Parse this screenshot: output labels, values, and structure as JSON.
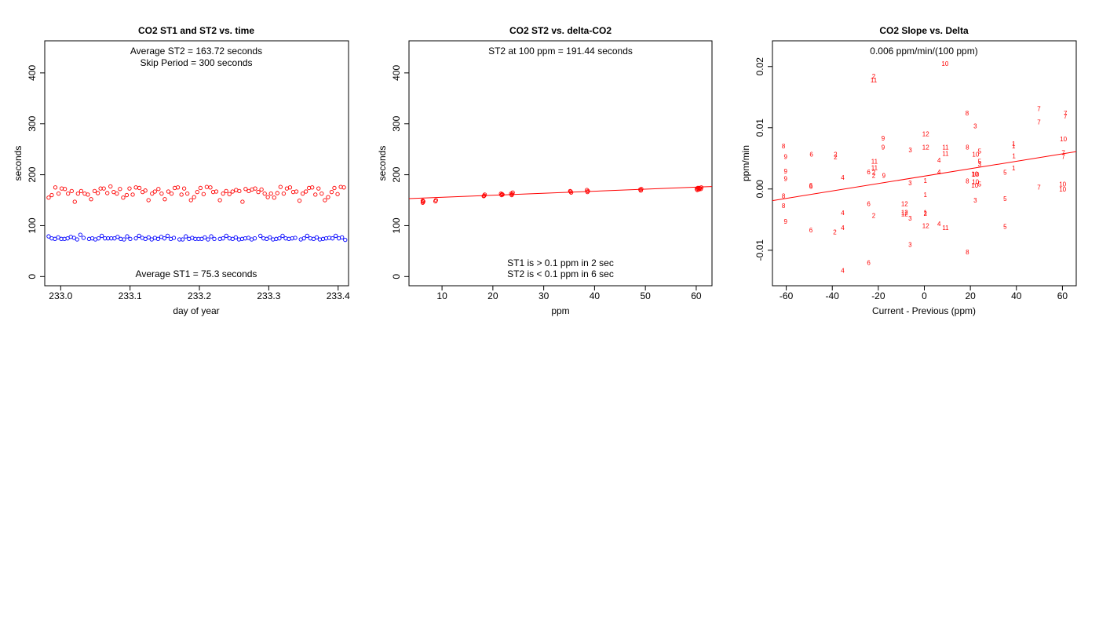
{
  "colors": {
    "st1": "#0000ff",
    "st2": "#ff0000",
    "fit": "#ff0000",
    "axis": "#000000"
  },
  "chart_data": [
    {
      "type": "scatter",
      "title": "CO2 ST1 and ST2 vs. time",
      "xlabel": "day of year",
      "ylabel": "seconds",
      "xlim": [
        232.977,
        233.415
      ],
      "ylim": [
        -18,
        463
      ],
      "xticks": [
        233.0,
        233.1,
        233.2,
        233.3,
        233.4
      ],
      "xtick_labels": [
        "233.0",
        "233.1",
        "233.2",
        "233.3",
        "233.4"
      ],
      "yticks": [
        0,
        100,
        200,
        300,
        400
      ],
      "ytick_labels": [
        "0",
        "100",
        "200",
        "300",
        "400"
      ],
      "annotations": [
        "Average ST2 =  163.72  seconds",
        "Skip Period =  300  seconds",
        "Average ST1 =  75.3  seconds"
      ],
      "series": [
        {
          "key": "ST2",
          "x": [
            232.9826,
            232.9871,
            232.9923,
            232.9969,
            233.0014,
            233.006,
            233.0106,
            233.0158,
            233.0203,
            233.0249,
            233.0295,
            233.0346,
            233.0392,
            233.0438,
            233.0489,
            233.0535,
            233.0575,
            233.0621,
            233.0672,
            233.0718,
            233.0764,
            233.081,
            233.0855,
            233.0901,
            233.0952,
            233.0992,
            233.1038,
            233.1084,
            233.1135,
            233.1181,
            233.122,
            233.1266,
            233.1318,
            233.1358,
            233.1409,
            233.1455,
            233.1501,
            233.1552,
            233.1598,
            233.1644,
            233.1689,
            233.1741,
            233.178,
            233.1826,
            233.1878,
            233.1923,
            233.1969,
            233.2015,
            233.206,
            233.2106,
            233.2158,
            233.2198,
            233.2243,
            233.2295,
            233.2341,
            233.2386,
            233.2432,
            233.2478,
            233.2529,
            233.2575,
            233.2621,
            233.2666,
            233.2712,
            233.2758,
            233.2804,
            233.2849,
            233.2895,
            233.2941,
            233.2986,
            233.3032,
            233.3078,
            233.3123,
            233.3169,
            233.3215,
            233.3261,
            233.3306,
            233.3352,
            233.3398,
            233.3443,
            233.3489,
            233.3535,
            233.358,
            233.3626,
            233.3672,
            233.3717,
            233.3763,
            233.3809,
            233.3855,
            233.3906,
            233.3946,
            233.3992,
            233.4038,
            233.4083
          ],
          "y": [
            155,
            160,
            175,
            163,
            173,
            172,
            163,
            168,
            147,
            163,
            168,
            163,
            161,
            152,
            168,
            164,
            173,
            173,
            164,
            177,
            166,
            163,
            172,
            155,
            160,
            173,
            161,
            175,
            174,
            166,
            169,
            150,
            163,
            167,
            172,
            163,
            152,
            167,
            163,
            174,
            175,
            161,
            173,
            163,
            150,
            156,
            166,
            174,
            162,
            176,
            175,
            166,
            167,
            150,
            163,
            168,
            162,
            167,
            170,
            168,
            147,
            172,
            168,
            171,
            173,
            166,
            171,
            163,
            156,
            163,
            155,
            164,
            176,
            163,
            173,
            175,
            166,
            167,
            149,
            163,
            167,
            174,
            175,
            161,
            173,
            163,
            150,
            156,
            166,
            174,
            162,
            176,
            175
          ]
        },
        {
          "key": "ST1",
          "x": [
            232.9826,
            232.9871,
            232.9917,
            232.9963,
            233.0009,
            233.0054,
            233.01,
            233.0146,
            233.0192,
            233.0237,
            233.0283,
            233.0329,
            233.0409,
            233.0455,
            233.05,
            233.0546,
            233.0592,
            233.0638,
            233.0683,
            233.0729,
            233.0775,
            233.0821,
            233.0866,
            233.0912,
            233.0958,
            233.1003,
            233.1084,
            233.113,
            233.1175,
            233.1221,
            233.1267,
            233.1312,
            233.1358,
            233.1404,
            233.145,
            233.1495,
            233.1541,
            233.1587,
            233.1632,
            233.1713,
            233.1758,
            233.1804,
            233.185,
            233.1895,
            233.1941,
            233.1987,
            233.2033,
            233.2078,
            233.2124,
            233.217,
            233.2215,
            233.2296,
            233.2341,
            233.2387,
            233.2433,
            233.2478,
            233.2524,
            233.257,
            233.2615,
            233.2661,
            233.2707,
            233.2753,
            233.2798,
            233.2879,
            233.2924,
            233.297,
            233.3016,
            233.3061,
            233.3107,
            233.3153,
            233.3199,
            233.3244,
            233.329,
            233.3336,
            233.3381,
            233.3462,
            233.3507,
            233.3553,
            233.3599,
            233.3645,
            233.369,
            233.3736,
            233.3782,
            233.3827,
            233.3873,
            233.3919,
            233.3965,
            233.401,
            233.4056,
            233.4102
          ],
          "y": [
            79,
            75,
            74,
            77,
            74,
            74,
            75,
            78,
            76,
            73,
            82,
            76,
            74,
            75,
            73,
            75,
            80,
            75,
            75,
            75,
            75,
            78,
            74,
            73,
            79,
            74,
            75,
            80,
            76,
            74,
            77,
            73,
            76,
            74,
            78,
            75,
            80,
            74,
            76,
            73,
            73,
            79,
            74,
            76,
            74,
            74,
            74,
            77,
            73,
            79,
            74,
            74,
            75,
            80,
            75,
            74,
            77,
            73,
            74,
            75,
            76,
            73,
            75,
            80,
            75,
            74,
            77,
            73,
            74,
            75,
            80,
            75,
            74,
            75,
            76,
            73,
            75,
            80,
            75,
            74,
            77,
            73,
            74,
            75,
            76,
            75,
            80,
            75,
            77,
            72
          ]
        }
      ]
    },
    {
      "type": "scatter",
      "title": "CO2 ST2 vs. delta-CO2",
      "xlabel": "ppm",
      "ylabel": "seconds",
      "xlim": [
        3.5,
        63.1
      ],
      "ylim": [
        -18,
        463
      ],
      "xticks": [
        10,
        20,
        30,
        40,
        50,
        60
      ],
      "xtick_labels": [
        "10",
        "20",
        "30",
        "40",
        "50",
        "60"
      ],
      "yticks": [
        0,
        100,
        200,
        300,
        400
      ],
      "ytick_labels": [
        "0",
        "100",
        "200",
        "300",
        "400"
      ],
      "annotations": [
        "ST2 at 100 ppm =  191.44  seconds",
        "ST1 is > 0.1 ppm in 2 sec",
        "ST2 is < 0.1 ppm in 6 sec"
      ],
      "fit_line": {
        "x": [
          3.5,
          63.1
        ],
        "y": [
          153.1,
          176.9
        ]
      },
      "series": [
        {
          "key": "ST2",
          "x": [
            6.2,
            6.3,
            6.3,
            6.2,
            8.7,
            8.8,
            18.3,
            18.4,
            18.2,
            21.7,
            21.8,
            21.6,
            21.9,
            23.7,
            23.8,
            23.6,
            23.9,
            35.3,
            35.4,
            35.2,
            38.6,
            38.7,
            38.5,
            49.1,
            49.2,
            49.0,
            60.1,
            60.3,
            60.5,
            60.7,
            60.9,
            61.0,
            60.2,
            60.6,
            60.4
          ],
          "y": [
            145,
            147,
            148,
            149,
            148,
            150,
            159,
            161,
            158,
            160,
            162,
            163,
            161,
            160,
            162,
            163,
            165,
            167,
            165,
            168,
            166,
            168,
            170,
            169,
            172,
            171,
            172,
            174,
            171,
            173,
            172,
            175,
            170,
            174,
            173
          ]
        }
      ]
    },
    {
      "type": "scatter",
      "title": "CO2 Slope vs. Delta",
      "xlabel": "Current - Previous (ppm)",
      "ylabel": "ppm/min",
      "xlim": [
        -66,
        66
      ],
      "ylim": [
        -0.0158,
        0.0242
      ],
      "xticks": [
        -60,
        -40,
        -20,
        0,
        20,
        40,
        60
      ],
      "xtick_labels": [
        "-60",
        "-40",
        "-20",
        "0",
        "20",
        "40",
        "60"
      ],
      "yticks": [
        -0.01,
        0.0,
        0.01,
        0.02
      ],
      "ytick_labels": [
        "-0.01",
        "0.00",
        "0.01",
        "0.02"
      ],
      "annotations": [
        "0.006  ppm/min/(100 ppm)",
        "10"
      ],
      "fit_line": {
        "x": [
          -66,
          66
        ],
        "y": [
          -0.0019,
          0.0061
        ]
      },
      "point_labels": [
        {
          "x": 9.0,
          "y": 0.0205,
          "t": "10"
        },
        {
          "x": -22,
          "y": 0.0184,
          "t": "2"
        },
        {
          "x": -22,
          "y": 0.0178,
          "t": "11"
        },
        {
          "x": 18.6,
          "y": 0.0124,
          "t": "8"
        },
        {
          "x": 22.1,
          "y": 0.0103,
          "t": "3"
        },
        {
          "x": 49.8,
          "y": 0.0131,
          "t": "7"
        },
        {
          "x": 61.3,
          "y": 0.0124,
          "t": "7"
        },
        {
          "x": 61.3,
          "y": 0.0119,
          "t": "7"
        },
        {
          "x": 49.8,
          "y": 0.0109,
          "t": "7"
        },
        {
          "x": 0.6,
          "y": 0.009,
          "t": "12"
        },
        {
          "x": 60.4,
          "y": 0.0082,
          "t": "10"
        },
        {
          "x": -17.9,
          "y": 0.0083,
          "t": "9"
        },
        {
          "x": -17.9,
          "y": 0.0068,
          "t": "9"
        },
        {
          "x": -61.2,
          "y": 0.007,
          "t": "8"
        },
        {
          "x": 38.8,
          "y": 0.0074,
          "t": "1"
        },
        {
          "x": 38.8,
          "y": 0.007,
          "t": "1"
        },
        {
          "x": 9.2,
          "y": 0.0068,
          "t": "11"
        },
        {
          "x": 0.6,
          "y": 0.0068,
          "t": "12"
        },
        {
          "x": 18.7,
          "y": 0.0068,
          "t": "8"
        },
        {
          "x": -6.1,
          "y": 0.0064,
          "t": "3"
        },
        {
          "x": 24.0,
          "y": 0.0062,
          "t": "5"
        },
        {
          "x": 9.2,
          "y": 0.0058,
          "t": "11"
        },
        {
          "x": -49.1,
          "y": 0.0057,
          "t": "6"
        },
        {
          "x": -38.6,
          "y": 0.0057,
          "t": "2"
        },
        {
          "x": -38.6,
          "y": 0.0052,
          "t": "2"
        },
        {
          "x": 22.3,
          "y": 0.0057,
          "t": "10"
        },
        {
          "x": -60.3,
          "y": 0.0053,
          "t": "9"
        },
        {
          "x": 38.9,
          "y": 0.0054,
          "t": "1"
        },
        {
          "x": 6.4,
          "y": 0.0047,
          "t": "4"
        },
        {
          "x": 24.0,
          "y": 0.0045,
          "t": "5"
        },
        {
          "x": 24.0,
          "y": 0.0041,
          "t": "3"
        },
        {
          "x": -21.7,
          "y": 0.0045,
          "t": "11"
        },
        {
          "x": 60.4,
          "y": 0.0059,
          "t": "7"
        },
        {
          "x": 60.4,
          "y": 0.0053,
          "t": "7"
        },
        {
          "x": 38.8,
          "y": 0.0034,
          "t": "1"
        },
        {
          "x": -21.7,
          "y": 0.0035,
          "t": "11"
        },
        {
          "x": -24.2,
          "y": 0.0028,
          "t": "6"
        },
        {
          "x": -22.0,
          "y": 0.0027,
          "t": "2"
        },
        {
          "x": -22.0,
          "y": 0.0022,
          "t": "2"
        },
        {
          "x": -60.3,
          "y": 0.0029,
          "t": "9"
        },
        {
          "x": 6.4,
          "y": 0.0028,
          "t": "4"
        },
        {
          "x": 35.1,
          "y": 0.0027,
          "t": "5"
        },
        {
          "x": 21.9,
          "y": 0.0025,
          "t": "10"
        },
        {
          "x": 22.3,
          "y": 0.0024,
          "t": "10"
        },
        {
          "x": -17.6,
          "y": 0.0022,
          "t": "9"
        },
        {
          "x": -35.5,
          "y": 0.0019,
          "t": "4"
        },
        {
          "x": -60.3,
          "y": 0.0017,
          "t": "9"
        },
        {
          "x": 0.4,
          "y": 0.0014,
          "t": "1"
        },
        {
          "x": 18.7,
          "y": 0.0013,
          "t": "8"
        },
        {
          "x": 22.2,
          "y": 0.0012,
          "t": "10"
        },
        {
          "x": -6.2,
          "y": 0.001,
          "t": "3"
        },
        {
          "x": 21.9,
          "y": 0.0006,
          "t": "10"
        },
        {
          "x": 24.0,
          "y": 0.0008,
          "t": "5"
        },
        {
          "x": -49.3,
          "y": 0.0006,
          "t": "6"
        },
        {
          "x": -49.3,
          "y": 0.0004,
          "t": "6"
        },
        {
          "x": 49.8,
          "y": 0.0003,
          "t": "7"
        },
        {
          "x": 60.1,
          "y": 0.0008,
          "t": "10"
        },
        {
          "x": 60.1,
          "y": 0.0,
          "t": "10"
        },
        {
          "x": -61.2,
          "y": -0.0011,
          "t": "8"
        },
        {
          "x": 0.4,
          "y": -0.0009,
          "t": "1"
        },
        {
          "x": 35.1,
          "y": -0.0016,
          "t": "5"
        },
        {
          "x": 22.1,
          "y": -0.0018,
          "t": "3"
        },
        {
          "x": -24.2,
          "y": -0.0024,
          "t": "6"
        },
        {
          "x": -8.6,
          "y": -0.0024,
          "t": "12"
        },
        {
          "x": -61.2,
          "y": -0.0027,
          "t": "8"
        },
        {
          "x": -8.6,
          "y": -0.0038,
          "t": "12"
        },
        {
          "x": -8.6,
          "y": -0.0041,
          "t": "12"
        },
        {
          "x": 0.4,
          "y": -0.0038,
          "t": "1"
        },
        {
          "x": 0.4,
          "y": -0.004,
          "t": "2"
        },
        {
          "x": -35.5,
          "y": -0.0039,
          "t": "4"
        },
        {
          "x": -22.0,
          "y": -0.0043,
          "t": "2"
        },
        {
          "x": -6.2,
          "y": -0.0048,
          "t": "3"
        },
        {
          "x": -60.3,
          "y": -0.0053,
          "t": "9"
        },
        {
          "x": 6.4,
          "y": -0.0057,
          "t": "4"
        },
        {
          "x": 0.6,
          "y": -0.006,
          "t": "12"
        },
        {
          "x": 9.2,
          "y": -0.0063,
          "t": "11"
        },
        {
          "x": 35.1,
          "y": -0.0061,
          "t": "5"
        },
        {
          "x": -35.5,
          "y": -0.0063,
          "t": "4"
        },
        {
          "x": -49.3,
          "y": -0.0067,
          "t": "6"
        },
        {
          "x": -38.9,
          "y": -0.007,
          "t": "2"
        },
        {
          "x": -6.2,
          "y": -0.0091,
          "t": "3"
        },
        {
          "x": 18.7,
          "y": -0.0103,
          "t": "8"
        },
        {
          "x": -24.2,
          "y": -0.012,
          "t": "6"
        },
        {
          "x": -35.5,
          "y": -0.0133,
          "t": "4"
        }
      ]
    }
  ]
}
